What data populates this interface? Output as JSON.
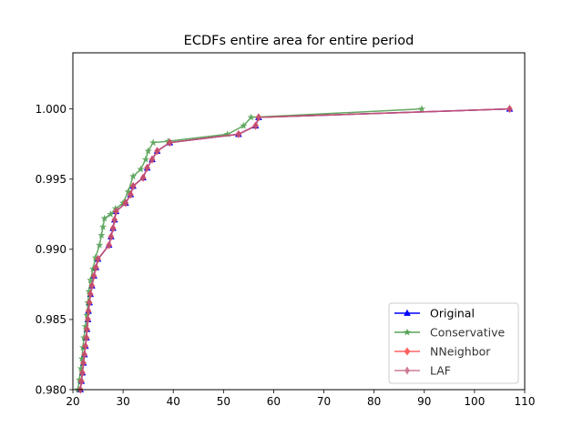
{
  "chart_data": {
    "type": "line",
    "title": "ECDFs entire area for entire period",
    "xlabel": "",
    "ylabel": "",
    "xlim": [
      20,
      110
    ],
    "ylim": [
      0.98,
      1.004
    ],
    "xticks": [
      20,
      30,
      40,
      50,
      60,
      70,
      80,
      90,
      100,
      110
    ],
    "yticks": [
      0.98,
      0.985,
      0.99,
      0.995,
      1.0
    ],
    "xtick_labels": [
      "20",
      "30",
      "40",
      "50",
      "60",
      "70",
      "80",
      "90",
      "100",
      "110"
    ],
    "ytick_labels": [
      "0.980",
      "0.985",
      "0.990",
      "0.995",
      "1.000"
    ],
    "grid": false,
    "legend_position": "lower-right",
    "series": [
      {
        "name": "Original",
        "color": "#0000ff",
        "marker": "triangle",
        "x": [
          21.5,
          21.7,
          21.9,
          22.1,
          22.3,
          22.5,
          22.7,
          22.8,
          23.0,
          23.1,
          23.3,
          23.5,
          23.8,
          24.2,
          24.6,
          25.0,
          27.2,
          27.6,
          28.0,
          28.3,
          28.6,
          30.5,
          31.5,
          32.0,
          34.0,
          34.8,
          35.8,
          36.8,
          39.3,
          53.0,
          56.4,
          57.0,
          107.0
        ],
        "y": [
          0.98,
          0.9806,
          0.9812,
          0.9819,
          0.9825,
          0.9831,
          0.9837,
          0.9843,
          0.985,
          0.9856,
          0.9862,
          0.9868,
          0.9874,
          0.9881,
          0.9887,
          0.9893,
          0.9903,
          0.9909,
          0.9915,
          0.9921,
          0.9927,
          0.9933,
          0.9939,
          0.9945,
          0.9951,
          0.9958,
          0.9964,
          0.997,
          0.9976,
          0.9982,
          0.9988,
          0.9994,
          1.0
        ]
      },
      {
        "name": "Conservative",
        "color": "#2e8b2e",
        "marker": "star",
        "x": [
          21.0,
          21.3,
          21.6,
          21.8,
          22.0,
          22.2,
          22.5,
          22.8,
          23.0,
          23.2,
          23.5,
          24.0,
          24.5,
          25.3,
          25.7,
          26.0,
          26.3,
          27.5,
          28.5,
          30.0,
          31.0,
          32.0,
          33.5,
          34.5,
          35.0,
          36.0,
          39.0,
          50.8,
          54.0,
          55.5,
          89.5
        ],
        "y": [
          0.98,
          0.9807,
          0.9815,
          0.9822,
          0.983,
          0.9837,
          0.9845,
          0.9853,
          0.9862,
          0.987,
          0.9878,
          0.9886,
          0.9894,
          0.9903,
          0.991,
          0.9916,
          0.9922,
          0.9925,
          0.9929,
          0.9933,
          0.9941,
          0.9952,
          0.9957,
          0.9964,
          0.997,
          0.9976,
          0.9977,
          0.9982,
          0.9988,
          0.9994,
          1.0
        ]
      },
      {
        "name": "NNeighbor",
        "color": "#ff3b3b",
        "marker": "diamond",
        "x": [
          21.5,
          21.7,
          21.9,
          22.1,
          22.3,
          22.5,
          22.7,
          22.8,
          23.0,
          23.1,
          23.3,
          23.5,
          23.8,
          24.2,
          24.6,
          25.0,
          27.2,
          27.6,
          28.0,
          28.3,
          28.6,
          30.5,
          31.5,
          32.0,
          34.0,
          34.8,
          35.8,
          36.8,
          39.3,
          53.0,
          56.4,
          57.0,
          107.0
        ],
        "y": [
          0.98,
          0.9806,
          0.9812,
          0.9819,
          0.9825,
          0.9831,
          0.9837,
          0.9843,
          0.985,
          0.9856,
          0.9862,
          0.9868,
          0.9874,
          0.9881,
          0.9887,
          0.9893,
          0.9903,
          0.9909,
          0.9915,
          0.9921,
          0.9927,
          0.9933,
          0.9939,
          0.9945,
          0.9951,
          0.9958,
          0.9964,
          0.997,
          0.9976,
          0.9982,
          0.9988,
          0.9994,
          1.0
        ]
      },
      {
        "name": "LAF",
        "color": "#c05a78",
        "marker": "thin-diamond",
        "x": [
          21.5,
          21.7,
          21.9,
          22.1,
          22.3,
          22.5,
          22.7,
          22.8,
          23.0,
          23.1,
          23.3,
          23.5,
          23.8,
          24.2,
          24.6,
          25.0,
          27.2,
          27.6,
          28.0,
          28.3,
          28.6,
          30.5,
          31.5,
          32.0,
          34.0,
          34.8,
          35.8,
          36.8,
          39.3,
          53.0,
          56.4,
          57.0,
          107.0
        ],
        "y": [
          0.98,
          0.9806,
          0.9812,
          0.9819,
          0.9825,
          0.9831,
          0.9837,
          0.9843,
          0.985,
          0.9856,
          0.9862,
          0.9868,
          0.9874,
          0.9881,
          0.9887,
          0.9893,
          0.9903,
          0.9909,
          0.9915,
          0.9921,
          0.9927,
          0.9933,
          0.9939,
          0.9945,
          0.9951,
          0.9958,
          0.9964,
          0.997,
          0.9976,
          0.9982,
          0.9988,
          0.9994,
          1.0
        ]
      }
    ]
  }
}
